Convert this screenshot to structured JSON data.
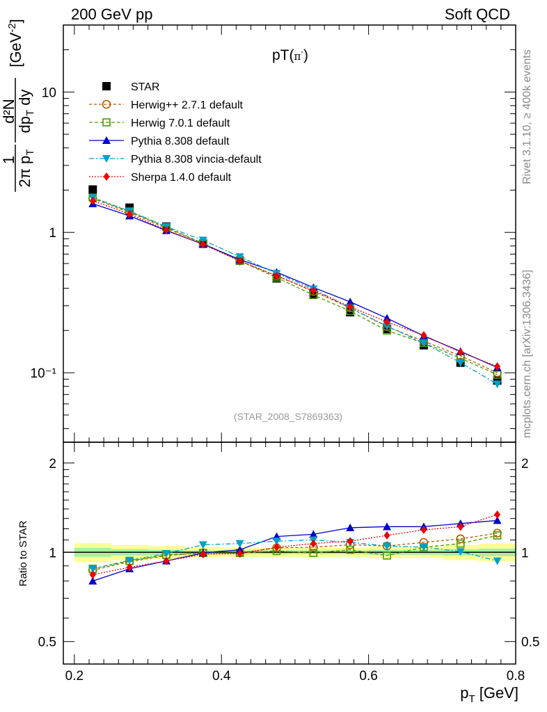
{
  "header": {
    "left": "200 GeV pp",
    "right": "Soft QCD"
  },
  "side_text": {
    "rivet": "Rivet 3.1.10, ≥ 400k events",
    "mcplots": "mcplots.cern.ch [arXiv:1306.3436]"
  },
  "plot_title_base": "pT(",
  "plot_title_pi": "π",
  "plot_title_sup": "-",
  "plot_title_close": ")",
  "watermark": "(STAR_2008_S7869363)",
  "ratio_ylabel": "Ratio to STAR",
  "xlabel": {
    "main": "p",
    "sub": "T",
    "unit": " [GeV]"
  },
  "ylabel": {
    "frac1_num": "1",
    "frac1_den": "2π p",
    "frac1_den_sub": "T",
    "frac2_num": "d²N",
    "frac2_den": "dp",
    "frac2_den_sub": "T",
    "frac2_den_tail": " dy",
    "unit": "[GeV",
    "unit_sup": "-2",
    "unit_close": "]"
  },
  "colors": {
    "star": "#000000",
    "herwigpp": "#b05b00",
    "herwig7": "#4a9a00",
    "pythia": "#0000cc",
    "vincia": "#00a0c8",
    "sherpa": "#ee0000"
  },
  "chart_data": [
    {
      "type": "line",
      "panel": "main",
      "title": "pT(π-)",
      "xlabel": "pT [GeV]",
      "ylabel": "1/(2π pT) d²N/(dpT dy) [GeV^-2]",
      "yscale": "log",
      "xlim": [
        0.185,
        0.8
      ],
      "ylim": [
        0.032,
        30
      ],
      "x_ticks": [
        "0.2",
        "0.4",
        "0.6",
        "0.8"
      ],
      "y_tick_labels": [
        "10⁻¹",
        "1",
        "10"
      ],
      "x": [
        0.225,
        0.275,
        0.325,
        0.375,
        0.425,
        0.475,
        0.525,
        0.575,
        0.625,
        0.675,
        0.725,
        0.775
      ],
      "series": [
        {
          "name": "STAR",
          "key": "star",
          "marker": "square-filled",
          "values": [
            2.02,
            1.5,
            1.1,
            0.83,
            0.63,
            0.47,
            0.36,
            0.27,
            0.205,
            0.157,
            0.118,
            0.088
          ]
        },
        {
          "name": "Herwig++ 2.7.1 default",
          "key": "herwigpp",
          "marker": "circle-open",
          "values": [
            1.74,
            1.39,
            1.07,
            0.835,
            0.627,
            0.49,
            0.38,
            0.29,
            0.213,
            0.168,
            0.132,
            0.1
          ]
        },
        {
          "name": "Herwig 7.0.1 default",
          "key": "herwig7",
          "marker": "square-open",
          "values": [
            1.77,
            1.41,
            1.09,
            0.836,
            0.627,
            0.476,
            0.358,
            0.275,
            0.2,
            0.163,
            0.127,
            0.097
          ]
        },
        {
          "name": "Pythia 8.308 default",
          "key": "pythia",
          "marker": "triangle-up",
          "values": [
            1.6,
            1.31,
            1.03,
            0.825,
            0.64,
            0.52,
            0.405,
            0.32,
            0.245,
            0.183,
            0.142,
            0.109
          ]
        },
        {
          "name": "Pythia 8.308 vincia-default",
          "key": "vincia",
          "marker": "triangle-down",
          "values": [
            1.77,
            1.42,
            1.1,
            0.88,
            0.67,
            0.51,
            0.395,
            0.29,
            0.215,
            0.163,
            0.118,
            0.083
          ]
        },
        {
          "name": "Sherpa 1.4.0 default",
          "key": "sherpa",
          "marker": "diamond",
          "values": [
            1.68,
            1.35,
            1.04,
            0.82,
            0.625,
            0.49,
            0.385,
            0.295,
            0.23,
            0.185,
            0.14,
            0.111
          ]
        }
      ]
    },
    {
      "type": "line",
      "panel": "ratio",
      "ylabel": "Ratio to STAR",
      "yscale": "log",
      "xlim": [
        0.185,
        0.8
      ],
      "ylim": [
        0.42,
        2.35
      ],
      "y_ticks": [
        "0.5",
        "1",
        "2"
      ],
      "x": [
        0.225,
        0.275,
        0.325,
        0.375,
        0.425,
        0.475,
        0.525,
        0.575,
        0.625,
        0.675,
        0.725,
        0.775
      ],
      "series": [
        {
          "name": "Herwig++ 2.7.1 default",
          "key": "herwigpp",
          "marker": "circle-open",
          "values": [
            0.87,
            0.93,
            0.975,
            0.995,
            0.995,
            1.035,
            1.04,
            1.06,
            1.05,
            1.08,
            1.11,
            1.16
          ]
        },
        {
          "name": "Herwig 7.0.1 default",
          "key": "herwig7",
          "marker": "square-open",
          "values": [
            0.88,
            0.935,
            0.98,
            0.995,
            0.995,
            1.01,
            0.995,
            1.02,
            0.975,
            1.04,
            1.07,
            1.14
          ]
        },
        {
          "name": "Pythia 8.308 default",
          "key": "pythia",
          "marker": "triangle-up",
          "values": [
            0.8,
            0.88,
            0.935,
            0.995,
            1.02,
            1.13,
            1.15,
            1.21,
            1.22,
            1.22,
            1.25,
            1.28
          ]
        },
        {
          "name": "Pythia 8.308 vincia-default",
          "key": "vincia",
          "marker": "triangle-down",
          "values": [
            0.88,
            0.94,
            0.99,
            1.06,
            1.07,
            1.09,
            1.1,
            1.08,
            1.05,
            1.04,
            1.005,
            0.935
          ]
        },
        {
          "name": "Sherpa 1.4.0 default",
          "key": "sherpa",
          "marker": "diamond",
          "values": [
            0.84,
            0.89,
            0.935,
            0.985,
            0.99,
            1.04,
            1.07,
            1.09,
            1.14,
            1.19,
            1.22,
            1.34
          ]
        }
      ],
      "band_bins": [
        {
          "xlo": 0.2,
          "xhi": 0.25,
          "inner": [
            0.965,
            1.035
          ],
          "outer": [
            0.925,
            1.075
          ]
        },
        {
          "xlo": 0.25,
          "xhi": 0.3,
          "inner": [
            0.975,
            1.025
          ],
          "outer": [
            0.94,
            1.06
          ]
        },
        {
          "xlo": 0.3,
          "xhi": 0.35,
          "inner": [
            0.98,
            1.02
          ],
          "outer": [
            0.95,
            1.05
          ]
        },
        {
          "xlo": 0.35,
          "xhi": 0.4,
          "inner": [
            0.985,
            1.015
          ],
          "outer": [
            0.96,
            1.04
          ]
        },
        {
          "xlo": 0.4,
          "xhi": 0.45,
          "inner": [
            0.985,
            1.015
          ],
          "outer": [
            0.965,
            1.035
          ]
        },
        {
          "xlo": 0.45,
          "xhi": 0.5,
          "inner": [
            0.985,
            1.015
          ],
          "outer": [
            0.965,
            1.035
          ]
        },
        {
          "xlo": 0.5,
          "xhi": 0.55,
          "inner": [
            0.985,
            1.015
          ],
          "outer": [
            0.965,
            1.035
          ]
        },
        {
          "xlo": 0.55,
          "xhi": 0.6,
          "inner": [
            0.985,
            1.015
          ],
          "outer": [
            0.965,
            1.035
          ]
        },
        {
          "xlo": 0.6,
          "xhi": 0.65,
          "inner": [
            0.98,
            1.02
          ],
          "outer": [
            0.955,
            1.045
          ]
        },
        {
          "xlo": 0.65,
          "xhi": 0.7,
          "inner": [
            0.98,
            1.02
          ],
          "outer": [
            0.955,
            1.045
          ]
        },
        {
          "xlo": 0.7,
          "xhi": 0.75,
          "inner": [
            0.975,
            1.025
          ],
          "outer": [
            0.94,
            1.06
          ]
        },
        {
          "xlo": 0.75,
          "xhi": 0.8,
          "inner": [
            0.97,
            1.03
          ],
          "outer": [
            0.93,
            1.07
          ]
        }
      ]
    }
  ]
}
